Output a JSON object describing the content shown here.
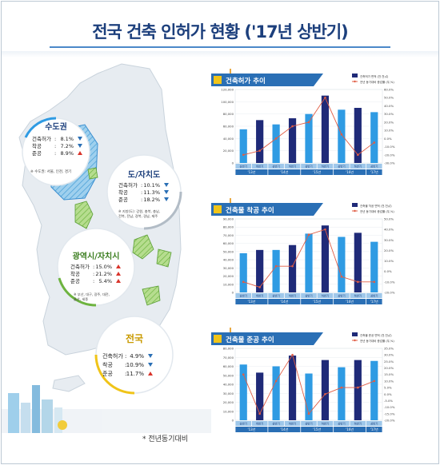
{
  "page_title": "전국 건축 인허가 현황 ('17년 상반기)",
  "footnote": "* 전년동기대비",
  "colors": {
    "title": "#1c3f7c",
    "bar_light": "#2f9be3",
    "bar_dark": "#1f2a78",
    "line": "#e05d44",
    "axis_band": "#2a6fb5"
  },
  "regions": [
    {
      "name": "수도권",
      "rows": [
        [
          "건축허가",
          "8.1%",
          "down"
        ],
        [
          "착공",
          "7.2%",
          "down"
        ],
        [
          "준공",
          "8.9%",
          "up"
        ]
      ],
      "note": "※ 수도권: 서울, 인천, 경기"
    },
    {
      "name": "도/자치도",
      "rows": [
        [
          "건축허가",
          "10.1%",
          "down"
        ],
        [
          "착공",
          "11.3%",
          "down"
        ],
        [
          "준공",
          "18.2%",
          "down"
        ]
      ],
      "note": "※ 지방(도): 강원, 충북, 충남, 전북, 전남, 경북, 경남, 제주"
    },
    {
      "name": "광역시/자치시",
      "rows": [
        [
          "건축허가",
          "15.0%",
          "up"
        ],
        [
          "착공",
          "21.2%",
          "up"
        ],
        [
          "준공",
          "5.4%",
          "up"
        ]
      ],
      "note": "※ 부산, 대구, 광주, 대전, 울산, 세종"
    },
    {
      "name": "전국",
      "rows": [
        [
          "건축허가",
          "4.9%",
          "down"
        ],
        [
          "착공",
          "10.9%",
          "down"
        ],
        [
          "준공",
          "11.7%",
          "up"
        ]
      ],
      "note": ""
    }
  ],
  "chart_data": [
    {
      "type": "bar",
      "title": "건축허가 추이",
      "legend": [
        "건축허가 면적 (천.천㎡)",
        "전년 동기대비 증감률 (우,%)"
      ],
      "categories": [
        "상반기",
        "하반기",
        "상반기",
        "하반기",
        "상반기",
        "하반기",
        "상반기",
        "하반기",
        "상반기"
      ],
      "years": [
        "'13년",
        "'14년",
        "'15년",
        "'16년",
        "'17년"
      ],
      "bars": [
        55000,
        70000,
        63000,
        73000,
        80000,
        110000,
        87000,
        90000,
        83000
      ],
      "line": [
        -20,
        -15,
        0,
        15,
        20,
        50,
        5,
        -20,
        -5
      ],
      "ylim": [
        0,
        120000
      ],
      "y2lim": [
        -30,
        60
      ],
      "yticks": [
        0,
        20000,
        40000,
        60000,
        80000,
        100000,
        120000
      ],
      "y2ticks": [
        "60.0%",
        "50.0%",
        "40.0%",
        "30.0%",
        "20.0%",
        "10.0%",
        "0.0%",
        "-10.0%",
        "-20.0%",
        "-30.0%"
      ]
    },
    {
      "type": "bar",
      "title": "건축물 착공 추이",
      "legend": [
        "건축물 착공 면적 (천.천㎡)",
        "전년 동기대비 증감률 (우,%)"
      ],
      "categories": [
        "상반기",
        "하반기",
        "상반기",
        "하반기",
        "상반기",
        "하반기",
        "상반기",
        "하반기",
        "상반기"
      ],
      "years": [
        "'13년",
        "'14년",
        "'15년",
        "'16년",
        "'17년"
      ],
      "bars": [
        48000,
        52000,
        52000,
        58000,
        72000,
        82000,
        68000,
        73000,
        62000
      ],
      "line": [
        -10,
        -15,
        5,
        5,
        35,
        40,
        -5,
        -10,
        -10
      ],
      "ylim": [
        0,
        90000
      ],
      "y2lim": [
        -20,
        50
      ],
      "yticks": [
        0,
        10000,
        20000,
        30000,
        40000,
        50000,
        60000,
        70000,
        80000,
        90000
      ],
      "y2ticks": [
        "50.0%",
        "40.0%",
        "30.0%",
        "20.0%",
        "10.0%",
        "0.0%",
        "-10.0%",
        "-20.0%"
      ]
    },
    {
      "type": "bar",
      "title": "건축물 준공 추이",
      "legend": [
        "건축물 준공 면적 (천.천㎡)",
        "전년 동기대비 증감률 (우,%)"
      ],
      "categories": [
        "상반기",
        "하반기",
        "상반기",
        "하반기",
        "상반기",
        "하반기",
        "상반기",
        "하반기",
        "상반기"
      ],
      "years": [
        "'13년",
        "'14년",
        "'15년",
        "'16년",
        "'17년"
      ],
      "bars": [
        62000,
        53000,
        60000,
        72000,
        52000,
        67000,
        59000,
        67000,
        66000
      ],
      "line": [
        15,
        -15,
        10,
        30,
        -15,
        0,
        5,
        5,
        10
      ],
      "ylim": [
        0,
        80000
      ],
      "y2lim": [
        -20,
        35
      ],
      "yticks": [
        0,
        10000,
        20000,
        30000,
        40000,
        50000,
        60000,
        70000,
        80000
      ],
      "y2ticks": [
        "35.0%",
        "30.0%",
        "25.0%",
        "20.0%",
        "15.0%",
        "10.0%",
        "5.0%",
        "0.0%",
        "-5.0%",
        "-10.0%",
        "-15.0%",
        "-20.0%"
      ]
    }
  ]
}
